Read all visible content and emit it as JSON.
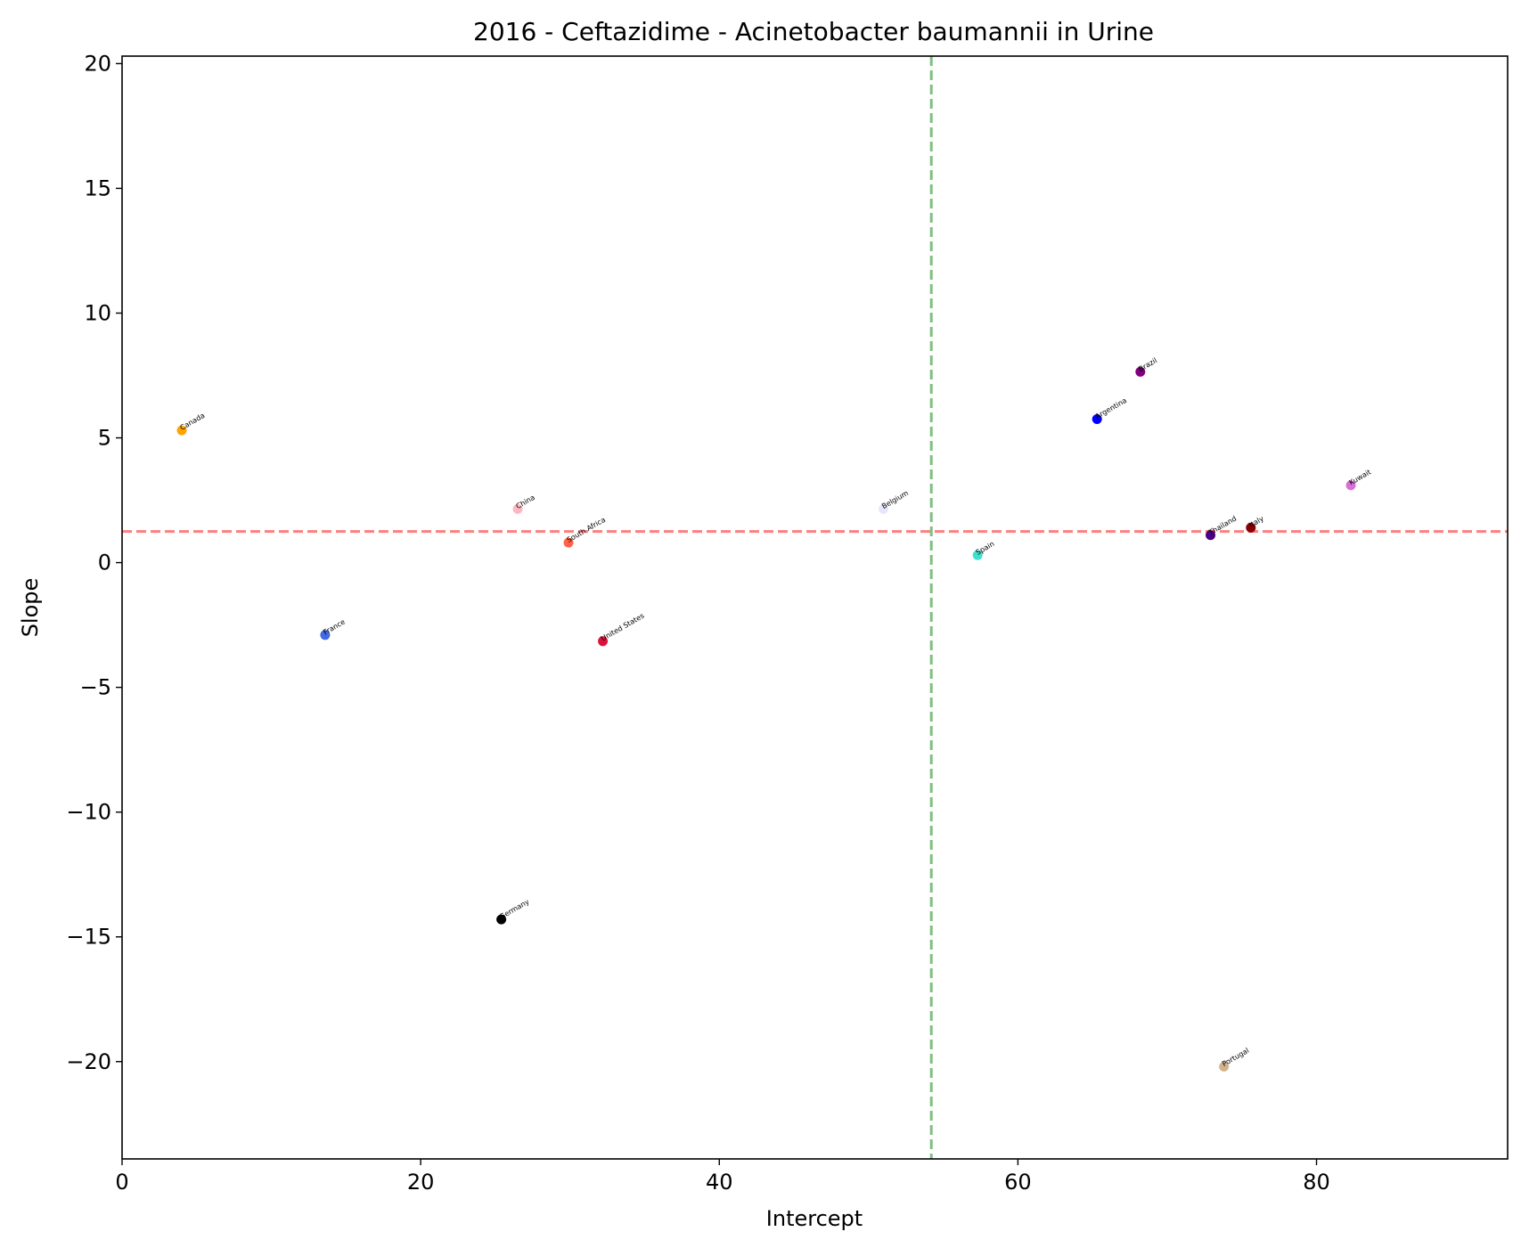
{
  "chart_data": {
    "type": "scatter",
    "title": "2016 - Ceftazidime - Acinetobacter baumannii in Urine",
    "xlabel": "Intercept",
    "ylabel": "Slope",
    "xlim": [
      0,
      92.8
    ],
    "ylim": [
      -23.9,
      20.3
    ],
    "xticks": [
      0,
      20,
      40,
      60,
      80
    ],
    "yticks": [
      -20,
      -15,
      -10,
      -5,
      0,
      5,
      10,
      15,
      20
    ],
    "reference_lines": {
      "vertical_x": 54.2,
      "vertical_color": "#7fbf7f",
      "horizontal_y": 1.25,
      "horizontal_color": "#ff7f7f"
    },
    "points": [
      {
        "label": "Canada",
        "x": 4.0,
        "y": 5.3,
        "color": "#ffa500"
      },
      {
        "label": "France",
        "x": 13.6,
        "y": -2.9,
        "color": "#4169e1"
      },
      {
        "label": "Germany",
        "x": 25.4,
        "y": -14.3,
        "color": "#000000"
      },
      {
        "label": "China",
        "x": 26.5,
        "y": 2.15,
        "color": "#ffb6c1"
      },
      {
        "label": "South Africa",
        "x": 29.9,
        "y": 0.8,
        "color": "#ff6347"
      },
      {
        "label": "United States",
        "x": 32.2,
        "y": -3.15,
        "color": "#dc143c"
      },
      {
        "label": "Belgium",
        "x": 51.0,
        "y": 2.15,
        "color": "#e6e6fa"
      },
      {
        "label": "Spain",
        "x": 57.3,
        "y": 0.3,
        "color": "#40e0d0"
      },
      {
        "label": "Argentina",
        "x": 65.3,
        "y": 5.75,
        "color": "#0000ff"
      },
      {
        "label": "Brazil",
        "x": 68.2,
        "y": 7.65,
        "color": "#800080"
      },
      {
        "label": "Thailand",
        "x": 72.9,
        "y": 1.1,
        "color": "#4b0082"
      },
      {
        "label": "Italy",
        "x": 75.6,
        "y": 1.4,
        "color": "#8b0000"
      },
      {
        "label": "Portugal",
        "x": 73.8,
        "y": -20.2,
        "color": "#d2b48c"
      },
      {
        "label": "Kuwait",
        "x": 82.3,
        "y": 3.1,
        "color": "#da70d6"
      }
    ]
  }
}
